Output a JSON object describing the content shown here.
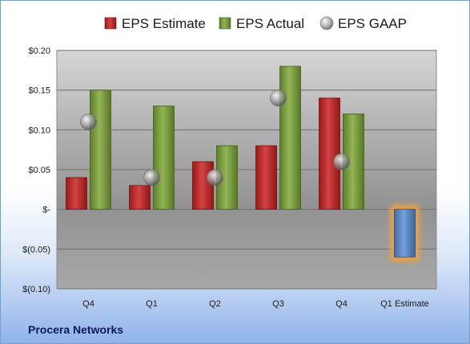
{
  "chart_data": {
    "type": "bar",
    "categories": [
      "Q4",
      "Q1",
      "Q2",
      "Q3",
      "Q4",
      "Q1 Estimate"
    ],
    "series": [
      {
        "name": "EPS Estimate",
        "values": [
          0.04,
          0.03,
          0.06,
          0.08,
          0.14,
          null
        ],
        "color": "#cc2222"
      },
      {
        "name": "EPS Actual",
        "values": [
          0.15,
          0.13,
          0.08,
          0.18,
          0.12,
          -0.06
        ],
        "color": "#7fa838"
      },
      {
        "name": "EPS GAAP",
        "values": [
          0.11,
          0.04,
          0.04,
          0.14,
          0.06,
          null
        ],
        "color": "#9a9a9a"
      }
    ],
    "highlight": {
      "category": "Q1 Estimate",
      "color": "#5b8fd6",
      "glow": "#f0a040"
    },
    "yticks": [
      "$0.20",
      "$0.15",
      "$0.10",
      "$0.05",
      "$-",
      "$(0.05)",
      "$(0.10)"
    ],
    "ylim": [
      -0.1,
      0.2
    ],
    "grid": true,
    "legend_position": "top"
  },
  "footer": {
    "company": "Procera Networks"
  }
}
